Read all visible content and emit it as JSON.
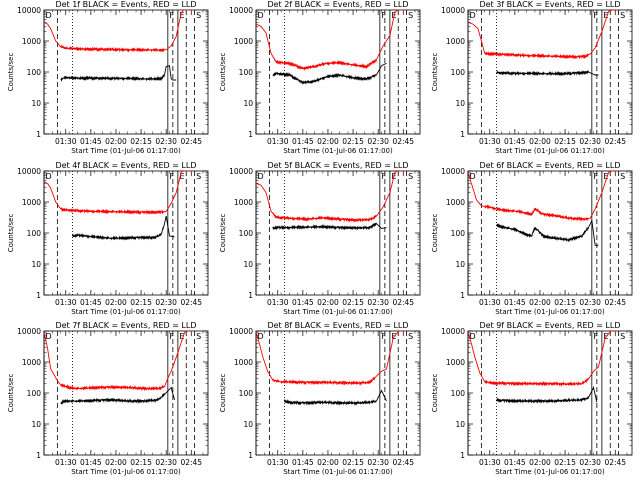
{
  "figure": {
    "x_axis_label": "Start Time (01-Jul-06 01:17:00)",
    "y_axis_label": "Counts/sec",
    "x_ticks": [
      {
        "label": "01:30",
        "minutes": 13
      },
      {
        "label": "01:45",
        "minutes": 28
      },
      {
        "label": "02:00",
        "minutes": 43
      },
      {
        "label": "02:15",
        "minutes": 58
      },
      {
        "label": "02:30",
        "minutes": 73
      },
      {
        "label": "02:45",
        "minutes": 88
      }
    ],
    "y_ticks": [
      {
        "label": "1",
        "value": 1
      },
      {
        "label": "10",
        "value": 10
      },
      {
        "label": "100",
        "value": 100
      },
      {
        "label": "1000",
        "value": 1000
      },
      {
        "label": "10000",
        "value": 10000
      }
    ],
    "markers": [
      {
        "label": "D",
        "minutes": 0,
        "style": "solid"
      },
      {
        "label": "",
        "minutes": 8,
        "style": "dashed"
      },
      {
        "label": "",
        "minutes": 17,
        "style": "dotted"
      },
      {
        "label": "F",
        "minutes": 74,
        "style": "solid"
      },
      {
        "label": "",
        "minutes": 77,
        "style": "dashed"
      },
      {
        "label": "E",
        "minutes": 80,
        "style": "solid"
      },
      {
        "label": "",
        "minutes": 85,
        "style": "dashed"
      },
      {
        "label": "S",
        "minutes": 90,
        "style": "dashed"
      }
    ],
    "colors": {
      "events": "#000000",
      "lld": "#ff0000",
      "axes": "#000000"
    }
  },
  "chart_data": [
    {
      "type": "line",
      "title": "Det 1f BLACK = Events, RED = LLD",
      "yscale": "log",
      "xlim": [
        0,
        98
      ],
      "ylim": [
        1,
        10000
      ],
      "series": [
        {
          "name": "LLD",
          "color": "#ff0000",
          "x": [
            0,
            2,
            4,
            7,
            10,
            13,
            20,
            30,
            40,
            50,
            60,
            70,
            73,
            76,
            79,
            82,
            84,
            86,
            88,
            90
          ],
          "y": [
            4000,
            3600,
            2500,
            1000,
            650,
            580,
            560,
            540,
            530,
            520,
            520,
            510,
            520,
            700,
            1400,
            8000,
            11000,
            11000,
            11000,
            11000
          ]
        },
        {
          "name": "Events",
          "color": "#000000",
          "x": [
            10,
            12,
            20,
            30,
            40,
            50,
            60,
            66,
            70,
            72,
            73,
            75,
            76,
            77,
            79
          ],
          "y": [
            55,
            65,
            64,
            63,
            62,
            62,
            60,
            60,
            62,
            80,
            150,
            160,
            60,
            55,
            55
          ]
        }
      ]
    },
    {
      "type": "line",
      "title": "Det 2f BLACK = Events, RED = LLD",
      "yscale": "log",
      "xlim": [
        0,
        98
      ],
      "ylim": [
        1,
        10000
      ],
      "series": [
        {
          "name": "LLD",
          "color": "#ff0000",
          "x": [
            0,
            3,
            6,
            9,
            12,
            20,
            28,
            35,
            42,
            50,
            58,
            66,
            72,
            76,
            80,
            83,
            86,
            88,
            90
          ],
          "y": [
            3500,
            3000,
            1800,
            400,
            210,
            190,
            130,
            150,
            190,
            200,
            170,
            150,
            250,
            700,
            1500,
            8500,
            11000,
            11000,
            11000
          ]
        },
        {
          "name": "Events",
          "color": "#000000",
          "x": [
            10,
            12,
            20,
            28,
            35,
            42,
            50,
            58,
            66,
            72,
            75,
            78
          ],
          "y": [
            80,
            90,
            80,
            45,
            50,
            70,
            80,
            65,
            60,
            80,
            160,
            190
          ]
        }
      ]
    },
    {
      "type": "line",
      "title": "Det 3f BLACK = Events, RED = LLD",
      "yscale": "log",
      "xlim": [
        0,
        98
      ],
      "ylim": [
        1,
        10000
      ],
      "series": [
        {
          "name": "LLD",
          "color": "#ff0000",
          "x": [
            0,
            3,
            6,
            8,
            10,
            15,
            25,
            35,
            45,
            55,
            65,
            70,
            73,
            76,
            80,
            84,
            88,
            90
          ],
          "y": [
            4000,
            3500,
            2500,
            1000,
            400,
            380,
            360,
            340,
            330,
            320,
            310,
            320,
            380,
            600,
            2000,
            9000,
            11000,
            11000
          ]
        },
        {
          "name": "Events",
          "color": "#000000",
          "x": [
            17,
            20,
            30,
            40,
            50,
            60,
            68,
            72,
            76,
            78
          ],
          "y": [
            95,
            92,
            90,
            90,
            88,
            90,
            95,
            100,
            80,
            80
          ]
        }
      ]
    },
    {
      "type": "line",
      "title": "Det 4f BLACK = Events, RED = LLD",
      "yscale": "log",
      "xlim": [
        0,
        98
      ],
      "ylim": [
        1,
        10000
      ],
      "series": [
        {
          "name": "LLD",
          "color": "#ff0000",
          "x": [
            0,
            2,
            4,
            7,
            10,
            13,
            20,
            30,
            40,
            50,
            60,
            70,
            73,
            76,
            79,
            82,
            84,
            86,
            88,
            90
          ],
          "y": [
            4500,
            4000,
            2800,
            1000,
            600,
            550,
            520,
            500,
            490,
            480,
            470,
            470,
            500,
            900,
            2000,
            9000,
            11000,
            11000,
            11000,
            11000
          ]
        },
        {
          "name": "Events",
          "color": "#000000",
          "x": [
            17,
            20,
            30,
            40,
            50,
            60,
            66,
            70,
            72,
            73,
            75,
            78
          ],
          "y": [
            80,
            85,
            75,
            68,
            70,
            72,
            70,
            90,
            200,
            350,
            80,
            75
          ]
        }
      ]
    },
    {
      "type": "line",
      "title": "Det 5f BLACK = Events, RED = LLD",
      "yscale": "log",
      "xlim": [
        0,
        98
      ],
      "ylim": [
        1,
        10000
      ],
      "series": [
        {
          "name": "LLD",
          "color": "#ff0000",
          "x": [
            0,
            3,
            6,
            9,
            12,
            20,
            30,
            40,
            50,
            60,
            68,
            72,
            76,
            80,
            83,
            86,
            88,
            90
          ],
          "y": [
            4000,
            3500,
            2000,
            500,
            320,
            300,
            280,
            310,
            280,
            260,
            270,
            350,
            700,
            2000,
            9000,
            11000,
            11000,
            11000
          ]
        },
        {
          "name": "Events",
          "color": "#000000",
          "x": [
            10,
            12,
            20,
            30,
            40,
            50,
            60,
            68,
            72,
            75,
            78
          ],
          "y": [
            140,
            150,
            150,
            155,
            160,
            150,
            145,
            150,
            200,
            140,
            150
          ]
        }
      ]
    },
    {
      "type": "line",
      "title": "Det 6f BLACK = Events, RED = LLD",
      "yscale": "log",
      "xlim": [
        0,
        98
      ],
      "ylim": [
        1,
        10000
      ],
      "series": [
        {
          "name": "LLD",
          "color": "#ff0000",
          "x": [
            0,
            2,
            5,
            8,
            12,
            20,
            30,
            38,
            40,
            45,
            50,
            60,
            70,
            73,
            76,
            80,
            84,
            88,
            90
          ],
          "y": [
            9000,
            4000,
            1200,
            750,
            700,
            550,
            500,
            400,
            600,
            400,
            380,
            300,
            280,
            300,
            600,
            2000,
            9000,
            11000,
            11000
          ]
        },
        {
          "name": "Events",
          "color": "#000000",
          "x": [
            17,
            20,
            28,
            35,
            38,
            40,
            45,
            50,
            60,
            68,
            72,
            74,
            76,
            78
          ],
          "y": [
            180,
            160,
            130,
            90,
            80,
            150,
            80,
            70,
            60,
            80,
            150,
            250,
            40,
            40
          ]
        }
      ]
    },
    {
      "type": "line",
      "title": "Det 7f BLACK = Events, RED = LLD",
      "yscale": "log",
      "xlim": [
        0,
        98
      ],
      "ylim": [
        1,
        10000
      ],
      "series": [
        {
          "name": "LLD",
          "color": "#ff0000",
          "x": [
            0,
            2,
            4,
            8,
            10,
            15,
            20,
            30,
            40,
            50,
            60,
            68,
            72,
            74,
            76,
            80,
            84,
            88,
            90
          ],
          "y": [
            9000,
            3000,
            600,
            250,
            180,
            150,
            140,
            150,
            155,
            150,
            140,
            140,
            160,
            300,
            500,
            2000,
            9000,
            11000,
            11000
          ]
        },
        {
          "name": "Events",
          "color": "#000000",
          "x": [
            10,
            12,
            20,
            30,
            40,
            50,
            60,
            68,
            72,
            76,
            78
          ],
          "y": [
            45,
            55,
            55,
            58,
            60,
            55,
            55,
            60,
            90,
            150,
            60
          ]
        }
      ]
    },
    {
      "type": "line",
      "title": "Det 8f BLACK = Events, RED = LLD",
      "yscale": "log",
      "xlim": [
        0,
        98
      ],
      "ylim": [
        1,
        10000
      ],
      "series": [
        {
          "name": "LLD",
          "color": "#ff0000",
          "x": [
            0,
            2,
            4,
            7,
            10,
            15,
            20,
            30,
            40,
            50,
            60,
            68,
            72,
            75,
            78,
            82,
            86,
            88,
            90
          ],
          "y": [
            9000,
            4000,
            1500,
            500,
            260,
            230,
            230,
            220,
            220,
            215,
            210,
            220,
            350,
            500,
            600,
            6000,
            11000,
            11000,
            11000
          ]
        },
        {
          "name": "Events",
          "color": "#000000",
          "x": [
            17,
            20,
            30,
            40,
            50,
            60,
            68,
            72,
            75,
            78
          ],
          "y": [
            55,
            50,
            48,
            50,
            48,
            48,
            50,
            55,
            120,
            55
          ]
        }
      ]
    },
    {
      "type": "line",
      "title": "Det 9f BLACK = Events, RED = LLD",
      "yscale": "log",
      "xlim": [
        0,
        98
      ],
      "ylim": [
        1,
        10000
      ],
      "series": [
        {
          "name": "LLD",
          "color": "#ff0000",
          "x": [
            0,
            2,
            4,
            7,
            10,
            15,
            20,
            30,
            40,
            50,
            60,
            68,
            72,
            75,
            78,
            82,
            86,
            88,
            90
          ],
          "y": [
            9000,
            4000,
            1500,
            450,
            230,
            210,
            210,
            200,
            200,
            200,
            195,
            200,
            280,
            500,
            700,
            6000,
            11000,
            11000,
            11000
          ]
        },
        {
          "name": "Events",
          "color": "#000000",
          "x": [
            17,
            20,
            30,
            40,
            50,
            60,
            68,
            72,
            75,
            77
          ],
          "y": [
            60,
            58,
            55,
            55,
            55,
            58,
            60,
            70,
            150,
            50
          ]
        }
      ]
    }
  ]
}
